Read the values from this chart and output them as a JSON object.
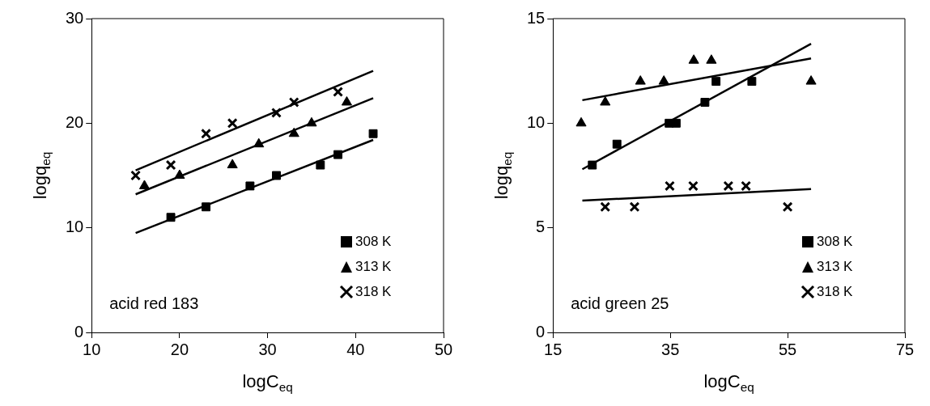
{
  "chart_data": [
    {
      "type": "scatter",
      "xlabel": "logC$_{eq}$",
      "ylabel": "logq$_{eq}$",
      "xlim": [
        10,
        50
      ],
      "xticks": [
        10,
        20,
        30,
        40,
        50
      ],
      "ylim": [
        0,
        30
      ],
      "yticks": [
        0,
        10,
        20,
        30
      ],
      "grid": false,
      "legend": "bottom right",
      "annotations": [
        "acid red 183"
      ],
      "series": [
        {
          "name": "308 K",
          "color": "#000000",
          "marker": "square",
          "x": [
            19,
            23,
            28,
            31,
            36,
            38,
            42
          ],
          "values": [
            11,
            12,
            14,
            15,
            16,
            17,
            19
          ]
        },
        {
          "name": "313 K",
          "color": "#000000",
          "marker": "triangle",
          "x": [
            16,
            20,
            26,
            29,
            33,
            35,
            39
          ],
          "values": [
            14,
            15,
            16,
            18,
            19,
            20,
            22
          ]
        },
        {
          "name": "318 K",
          "color": "#000000",
          "marker": "cross",
          "x": [
            15,
            19,
            23,
            26,
            31,
            33,
            38
          ],
          "values": [
            15,
            16,
            19,
            20,
            21,
            22,
            23
          ]
        },
        {
          "type": "line",
          "color": "#000000",
          "marker": "none",
          "x": [
            15,
            42
          ],
          "values": [
            9.5,
            18.4
          ]
        },
        {
          "type": "line",
          "color": "#000000",
          "marker": "none",
          "x": [
            15,
            42
          ],
          "values": [
            13.2,
            22.4
          ]
        },
        {
          "type": "line",
          "color": "#000000",
          "marker": "none",
          "x": [
            15,
            42
          ],
          "values": [
            15.5,
            25
          ]
        }
      ]
    },
    {
      "type": "scatter",
      "xlabel": "logC$_{eq}$",
      "ylabel": "logq$_{eq}$",
      "xlim": [
        15,
        75
      ],
      "xticks": [
        15,
        35,
        55,
        75
      ],
      "ylim": [
        0,
        15
      ],
      "yticks": [
        0,
        5,
        10,
        15
      ],
      "grid": false,
      "legend": "bottom right",
      "annotations": [
        "acid green 25"
      ],
      "series": [
        {
          "name": "308 K",
          "color": "#000000",
          "marker": "square",
          "x": [
            21.7,
            25.9,
            34.8,
            36,
            40.9,
            42.8,
            48.9
          ],
          "values": [
            8,
            9,
            10,
            10,
            11,
            12,
            12
          ]
        },
        {
          "name": "313 K",
          "color": "#000000",
          "marker": "triangle",
          "x": [
            19.8,
            23.9,
            29.9,
            33.9,
            39,
            42,
            59
          ],
          "values": [
            10,
            11,
            12,
            12,
            13,
            13,
            12
          ]
        },
        {
          "name": "318 K",
          "color": "#000000",
          "marker": "cross",
          "x": [
            23.9,
            28.9,
            34.9,
            38.9,
            44.9,
            47.9,
            55
          ],
          "values": [
            6,
            6,
            7,
            7,
            7,
            7,
            6
          ]
        },
        {
          "type": "line",
          "color": "#000000",
          "marker": "none",
          "x": [
            20,
            59
          ],
          "values": [
            7.8,
            13.8
          ]
        },
        {
          "type": "line",
          "color": "#000000",
          "marker": "none",
          "x": [
            20,
            59
          ],
          "values": [
            11.1,
            13.1
          ]
        },
        {
          "type": "line",
          "color": "#000000",
          "marker": "none",
          "x": [
            20,
            59
          ],
          "values": [
            6.3,
            6.85
          ]
        }
      ]
    }
  ]
}
